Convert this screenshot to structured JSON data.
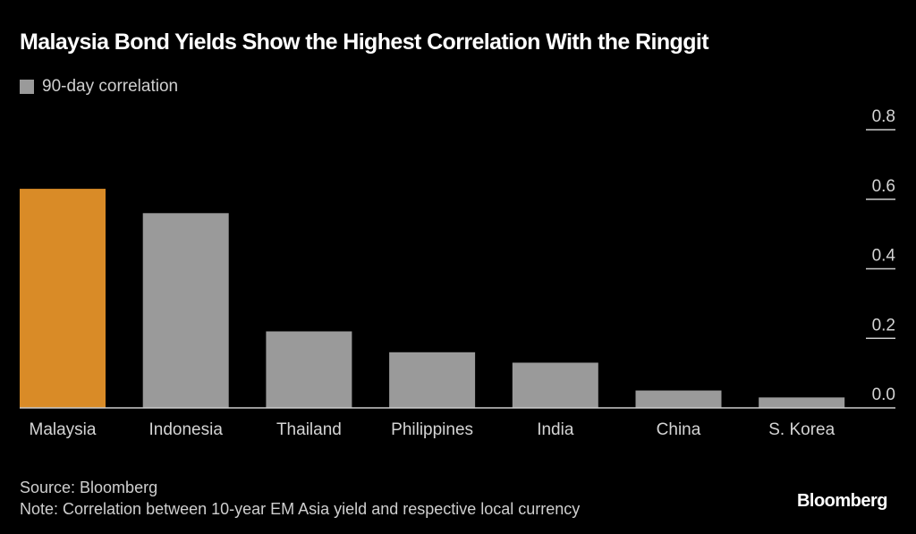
{
  "chart_data": {
    "type": "bar",
    "title": "Malaysia Bond Yields Show the Highest Correlation With the Ringgit",
    "legend": [
      "90-day correlation"
    ],
    "legend_position": "top-left",
    "categories": [
      "Malaysia",
      "Indonesia",
      "Thailand",
      "Philippines",
      "India",
      "China",
      "S. Korea"
    ],
    "series": [
      {
        "name": "90-day correlation",
        "values": [
          0.63,
          0.56,
          0.22,
          0.16,
          0.13,
          0.05,
          0.03
        ]
      }
    ],
    "highlight_index": 0,
    "colors": {
      "highlight": "#D98B27",
      "default": "#9A9A9A",
      "axis": "#CCCCCC",
      "background": "#000000"
    },
    "xlabel": "",
    "ylabel": "",
    "ylim": [
      0,
      0.8
    ],
    "yticks": [
      "0.0",
      "0.2",
      "0.4",
      "0.6",
      "0.8"
    ],
    "yaxis_side": "right",
    "grid": false
  },
  "footer": {
    "source": "Source: Bloomberg",
    "note": "Note: Correlation between 10-year EM Asia yield and respective local currency",
    "logo": "Bloomberg"
  }
}
